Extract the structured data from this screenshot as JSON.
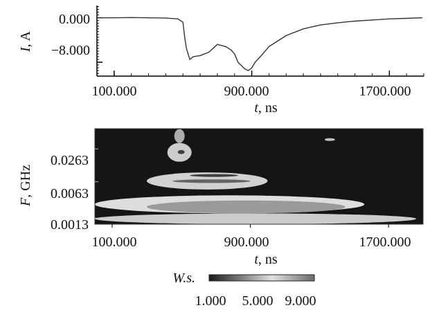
{
  "chart_data": [
    {
      "type": "line",
      "xlabel_var": "t",
      "xlabel_unit": ", ns",
      "ylabel_var": "I",
      "ylabel_unit": ", A",
      "xlim": [
        0,
        1900
      ],
      "ylim": [
        -10.5,
        2.2
      ],
      "x_ticks": [
        100,
        900,
        1700
      ],
      "x_tick_labels": [
        "100.000",
        "900.000",
        "1700.000"
      ],
      "y_ticks": [
        0,
        -8
      ],
      "y_tick_labels": [
        "0.000",
        "−8.000"
      ],
      "series": [
        {
          "color": "#333333",
          "x": [
            5,
            100,
            200,
            300,
            400,
            470,
            500,
            510,
            520,
            540,
            560,
            600,
            650,
            700,
            750,
            780,
            800,
            820,
            860,
            880,
            900,
            920,
            950,
            1000,
            1100,
            1200,
            1300,
            1400,
            1500,
            1600,
            1700,
            1800,
            1890
          ],
          "y": [
            0,
            0,
            0.05,
            0,
            -0.05,
            -0.2,
            -0.8,
            -3.5,
            -5.5,
            -7.5,
            -7.0,
            -6.8,
            -6.2,
            -4.8,
            -5.2,
            -5.8,
            -6.5,
            -8.0,
            -9.2,
            -9.5,
            -9.0,
            -8.0,
            -7.0,
            -5.2,
            -3.2,
            -2.0,
            -1.3,
            -0.9,
            -0.6,
            -0.4,
            -0.2,
            -0.1,
            0
          ]
        }
      ]
    },
    {
      "type": "heatmap",
      "xlabel_var": "t",
      "xlabel_unit": ", ns",
      "ylabel_var": "F",
      "ylabel_unit": ", GHz",
      "xlim": [
        0,
        1900
      ],
      "ylim_log10": [
        -3.0,
        -1.2
      ],
      "x_ticks": [
        100,
        900,
        1700
      ],
      "x_tick_labels": [
        "100.000",
        "900.000",
        "1700.000"
      ],
      "y_ticks": [
        0.0263,
        0.0063,
        0.0013
      ],
      "y_tick_labels": [
        "0.0263",
        "0.0063",
        "0.0013"
      ],
      "colorbar": {
        "label": "W.s.",
        "range": [
          1,
          10
        ],
        "tick_values": [
          1,
          5,
          9
        ],
        "tick_labels": [
          "1.000",
          "5.000",
          "9.000"
        ],
        "colors": [
          "#1a1a1a",
          "#e0e0e0",
          "#6a6a6a"
        ]
      },
      "regions": [
        {
          "t_start": 0,
          "t_end": 1860,
          "f_low": 0.001,
          "f_high": 0.0016,
          "level": 7.0
        },
        {
          "t_start": 0,
          "t_end": 1560,
          "f_low": 0.0016,
          "f_high": 0.0035,
          "level": 6.5
        },
        {
          "t_start": 300,
          "t_end": 1450,
          "f_low": 0.0016,
          "f_high": 0.0028,
          "level": 4.5
        },
        {
          "t_start": 300,
          "t_end": 1000,
          "f_low": 0.0045,
          "f_high": 0.0095,
          "level": 6.0
        },
        {
          "t_start": 450,
          "t_end": 900,
          "f_low": 0.006,
          "f_high": 0.007,
          "level": 3.0
        },
        {
          "t_start": 550,
          "t_end": 830,
          "f_low": 0.0078,
          "f_high": 0.0088,
          "level": 2.0
        },
        {
          "t_start": 420,
          "t_end": 560,
          "f_low": 0.015,
          "f_high": 0.034,
          "level": 7.0
        },
        {
          "t_start": 460,
          "t_end": 520,
          "f_low": 0.034,
          "f_high": 0.062,
          "level": 8.0
        },
        {
          "t_start": 480,
          "t_end": 520,
          "f_low": 0.021,
          "f_high": 0.025,
          "level": 2.0
        },
        {
          "t_start": 1330,
          "t_end": 1390,
          "f_low": 0.037,
          "f_high": 0.042,
          "level": 5.5
        }
      ]
    }
  ]
}
